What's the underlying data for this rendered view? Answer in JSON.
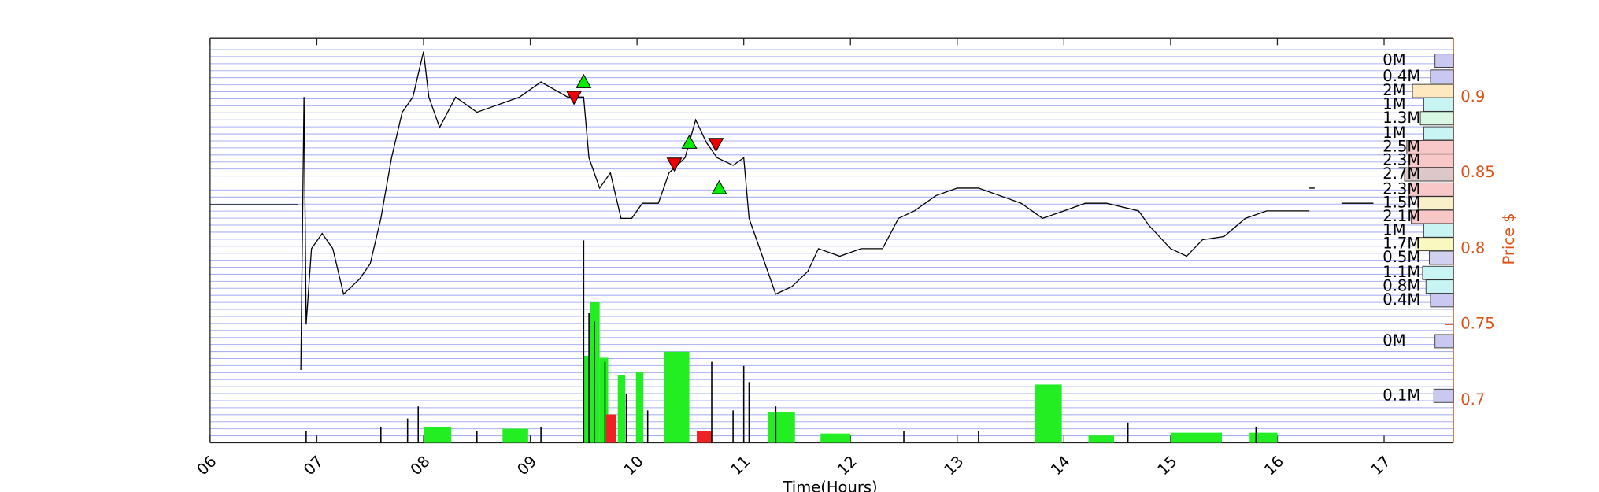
{
  "chart_data": {
    "type": "line",
    "xlabel": "Time(Hours)",
    "ylabel": "Price $",
    "xlim": [
      6,
      17.65
    ],
    "ylim": [
      0.672,
      0.939
    ],
    "xticks": [
      {
        "value": 6,
        "label": "06"
      },
      {
        "value": 7,
        "label": "07"
      },
      {
        "value": 8,
        "label": "08"
      },
      {
        "value": 9,
        "label": "09"
      },
      10,
      11,
      12,
      13,
      14,
      15,
      16,
      17
    ],
    "yticks": [
      0.7,
      0.75,
      0.8,
      0.85,
      0.9
    ],
    "axis_color": "#d95319",
    "series": [
      {
        "color": "#000000",
        "x": [
          6.0,
          6.82,
          null,
          6.85,
          6.88,
          6.9,
          6.95,
          7.05,
          7.15,
          7.25,
          7.4,
          7.5,
          7.6,
          7.7,
          7.8,
          7.9,
          8.0,
          8.05,
          8.15,
          8.3,
          8.5,
          8.7,
          8.9,
          9.1,
          9.35,
          9.5,
          9.55,
          9.65,
          9.75,
          9.85,
          9.95,
          10.05,
          10.2,
          10.3,
          10.45,
          10.55,
          10.65,
          10.75,
          10.9,
          11.0,
          11.05,
          11.15,
          11.3,
          11.45,
          11.6,
          11.7,
          11.9,
          12.1,
          12.3,
          12.45,
          12.6,
          12.8,
          13.0,
          13.2,
          13.4,
          13.6,
          13.8,
          14.0,
          14.2,
          14.4,
          14.7,
          14.8,
          15.0,
          15.15,
          15.3,
          15.5,
          15.7,
          15.9,
          16.0,
          16.3,
          null,
          16.3,
          16.35,
          null,
          16.6,
          16.9
        ],
        "values": [
          0.829,
          0.829,
          null,
          0.72,
          0.9,
          0.75,
          0.8,
          0.81,
          0.8,
          0.77,
          0.78,
          0.79,
          0.82,
          0.86,
          0.89,
          0.9,
          0.93,
          0.9,
          0.88,
          0.9,
          0.89,
          0.895,
          0.9,
          0.91,
          0.9,
          0.9,
          0.86,
          0.84,
          0.85,
          0.82,
          0.82,
          0.83,
          0.83,
          0.85,
          0.86,
          0.885,
          0.87,
          0.86,
          0.855,
          0.86,
          0.82,
          0.8,
          0.77,
          0.775,
          0.785,
          0.8,
          0.795,
          0.8,
          0.8,
          0.82,
          0.825,
          0.835,
          0.84,
          0.84,
          0.835,
          0.83,
          0.82,
          0.825,
          0.83,
          0.83,
          0.825,
          0.815,
          0.8,
          0.795,
          0.806,
          0.808,
          0.82,
          0.825,
          0.825,
          0.825,
          null,
          0.84,
          0.84,
          null,
          0.83,
          0.83
        ]
      }
    ],
    "volume": {
      "vlim": [
        0,
        100
      ],
      "bars": [
        {
          "start": 8.0,
          "end": 8.26,
          "value": 3.8,
          "color": "#22ee22"
        },
        {
          "start": 8.74,
          "end": 8.98,
          "value": 3.5,
          "color": "#22ee22"
        },
        {
          "start": 9.49,
          "end": 9.56,
          "value": 21.5,
          "color": "#22ee22"
        },
        {
          "start": 9.56,
          "end": 9.65,
          "value": 34.7,
          "color": "#22ee22"
        },
        {
          "start": 9.65,
          "end": 9.73,
          "value": 21,
          "color": "#22ee22"
        },
        {
          "start": 9.82,
          "end": 9.89,
          "value": 16.7,
          "color": "#22ee22"
        },
        {
          "start": 9.99,
          "end": 10.06,
          "value": 17.5,
          "color": "#22ee22"
        },
        {
          "start": 10.25,
          "end": 10.49,
          "value": 22.5,
          "color": "#22ee22"
        },
        {
          "start": 11.23,
          "end": 11.48,
          "value": 7.6,
          "color": "#22ee22"
        },
        {
          "start": 11.72,
          "end": 12.0,
          "value": 2.3,
          "color": "#22ee22"
        },
        {
          "start": 13.73,
          "end": 13.98,
          "value": 14.4,
          "color": "#22ee22"
        },
        {
          "start": 14.23,
          "end": 14.47,
          "value": 1.8,
          "color": "#22ee22"
        },
        {
          "start": 15.0,
          "end": 15.48,
          "value": 2.5,
          "color": "#22ee22"
        },
        {
          "start": 15.74,
          "end": 16.0,
          "value": 2.5,
          "color": "#22ee22"
        },
        {
          "start": 9.71,
          "end": 9.8,
          "value": 7,
          "color": "#ee2222"
        },
        {
          "start": 10.56,
          "end": 10.7,
          "value": 3,
          "color": "#ee2222"
        }
      ],
      "spikes": {
        "color": "#000000",
        "x": [
          6.9,
          7.6,
          7.85,
          7.95,
          8.5,
          9.1,
          9.5,
          9.55,
          9.6,
          9.7,
          9.9,
          10.1,
          10.7,
          10.9,
          11.0,
          11.05,
          11.3,
          12.5,
          13.2,
          14.6,
          15.8
        ],
        "values": [
          3,
          4,
          6,
          9,
          3,
          4,
          50,
          32,
          30,
          20,
          12,
          8,
          20,
          8,
          19,
          15,
          9,
          3,
          3,
          5,
          4
        ]
      }
    },
    "profile": {
      "prices": [
        0.924,
        0.9135,
        0.904,
        0.895,
        0.886,
        0.876,
        0.867,
        0.858,
        0.849,
        0.839,
        0.83,
        0.821,
        0.812,
        0.803,
        0.794,
        0.784,
        0.775,
        0.766,
        0.739,
        0.703
      ],
      "values": [
        0,
        0.4,
        2,
        1,
        1.3,
        1,
        2.5,
        2.3,
        2.7,
        2.3,
        1.5,
        2.1,
        1,
        1.7,
        0.5,
        1.1,
        0.8,
        0.4,
        0,
        0.1
      ],
      "value_labels": [
        "0M",
        "0.4M",
        "2M",
        "1M",
        "1.3M",
        "1M",
        "2.5M",
        "2.3M",
        "2.7M",
        "2.3M",
        "1.5M",
        "2.1M",
        "1M",
        "1.7M",
        "0.5M",
        "1.1M",
        "0.8M",
        "0.4M",
        "0M",
        "0.1M"
      ],
      "colors": [
        "#c8c8f0",
        "#c8c8f0",
        "#fde8c0",
        "#c8f4f4",
        "#d8f8e4",
        "#c8f4f4",
        "#f8c8c8",
        "#f8c8c8",
        "#dcc8c8",
        "#f8c8c8",
        "#f8f0c8",
        "#f8c8c8",
        "#c8f4f4",
        "#f8f8c0",
        "#d0d0f0",
        "#c8f4f4",
        "#c8f4f4",
        "#c8c8f0",
        "#c8c8f0",
        "#c8c8f0"
      ]
    },
    "markers": {
      "buy": {
        "color": "#00ee00",
        "x": [
          9.5,
          10.49,
          10.77
        ],
        "values": [
          0.91,
          0.87,
          0.84
        ]
      },
      "sell": {
        "color": "#ee0000",
        "x": [
          9.41,
          10.35,
          10.74
        ],
        "values": [
          0.9,
          0.856,
          0.869
        ]
      }
    }
  }
}
